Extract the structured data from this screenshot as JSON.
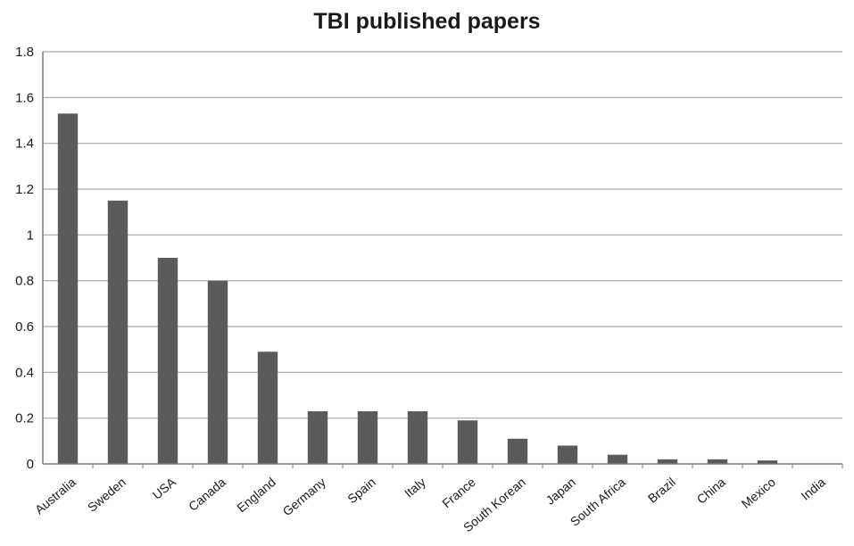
{
  "chart_data": {
    "type": "bar",
    "title": "TBI published papers",
    "xlabel": "",
    "ylabel": "",
    "categories": [
      "Australia",
      "Sweden",
      "USA",
      "Canada",
      "England",
      "Germany",
      "Spain",
      "Italy",
      "France",
      "South Korean",
      "Japan",
      "South Africa",
      "Brazil",
      "China",
      "Mexico",
      "India"
    ],
    "values": [
      1.53,
      1.15,
      0.9,
      0.8,
      0.49,
      0.23,
      0.23,
      0.23,
      0.19,
      0.11,
      0.08,
      0.04,
      0.02,
      0.02,
      0.015,
      0.0
    ],
    "ylim": [
      0,
      1.8
    ],
    "yticks": [
      "0",
      "0.2",
      "0.4",
      "0.6",
      "0.8",
      "1",
      "1.2",
      "1.4",
      "1.6",
      "1.8"
    ],
    "grid": true,
    "legend": "none",
    "colors": {
      "bar": "#5a5a5a",
      "grid": "#a8a8a8",
      "axis": "#7a7a7a"
    }
  }
}
